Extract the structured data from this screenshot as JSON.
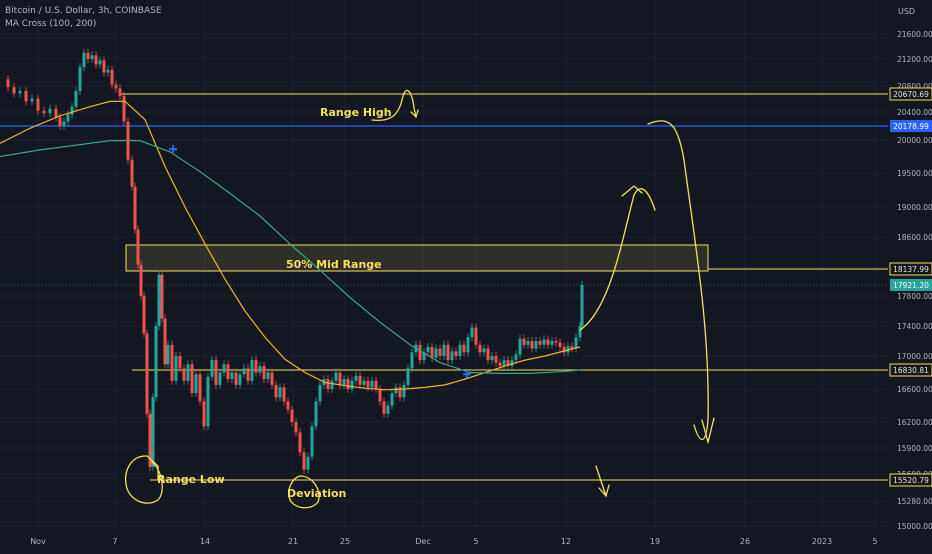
{
  "header": {
    "symbol_line": "Bitcoin / U.S. Dollar, 3h, COINBASE",
    "indicator_line": "MA Cross (100, 200)"
  },
  "axis": {
    "currency": "USD"
  },
  "colors": {
    "background": "#131722",
    "up": "#26a69a",
    "down": "#ef5350",
    "ma_fast": "#f0b429",
    "ma_slow": "#3aa683",
    "annotation": "#f5e05a",
    "range_high_line": "#2962ff",
    "grid": "#1e222d",
    "current_price_line": "#26a69a"
  },
  "annotations": {
    "range_high": "Range High",
    "mid_range": "50% Mid Range",
    "range_low": "Range Low",
    "deviation": "Deviation"
  },
  "chart_data": {
    "type": "line",
    "x_tick_labels": [
      "Nov",
      "7",
      "14",
      "21",
      "25",
      "Dec",
      "5",
      "12",
      "19",
      "26",
      "2023",
      "5"
    ],
    "y_ticks": [
      21600,
      21200,
      20800,
      20400,
      20000,
      19500,
      19000,
      18600,
      17800,
      17400,
      17000,
      16600,
      16200,
      15900,
      15600,
      15280,
      15000
    ],
    "ylim": [
      15000,
      21800
    ],
    "price_labels": [
      {
        "value": 20670.69,
        "label": "20670.69",
        "kind": "level"
      },
      {
        "value": 20178.99,
        "label": "20178.99",
        "kind": "blue"
      },
      {
        "value": 18137.99,
        "label": "18137.99",
        "kind": "level"
      },
      {
        "value": 17921.2,
        "label": "17921.20",
        "kind": "current"
      },
      {
        "value": 16830.81,
        "label": "16830.81",
        "kind": "level"
      },
      {
        "value": 15520.79,
        "label": "15520.79",
        "kind": "level"
      }
    ],
    "price_path": [
      [
        0,
        20900
      ],
      [
        8,
        20780
      ],
      [
        14,
        20680
      ],
      [
        20,
        20720
      ],
      [
        26,
        20560
      ],
      [
        32,
        20600
      ],
      [
        38,
        20420
      ],
      [
        44,
        20380
      ],
      [
        50,
        20450
      ],
      [
        56,
        20320
      ],
      [
        60,
        20180
      ],
      [
        64,
        20250
      ],
      [
        68,
        20360
      ],
      [
        72,
        20480
      ],
      [
        76,
        20720
      ],
      [
        80,
        21080
      ],
      [
        84,
        21300
      ],
      [
        88,
        21200
      ],
      [
        92,
        21260
      ],
      [
        96,
        21120
      ],
      [
        100,
        21180
      ],
      [
        104,
        21000
      ],
      [
        108,
        21040
      ],
      [
        112,
        20820
      ],
      [
        116,
        20760
      ],
      [
        120,
        20640
      ],
      [
        124,
        20250
      ],
      [
        128,
        19700
      ],
      [
        132,
        19300
      ],
      [
        135,
        18700
      ],
      [
        138,
        18200
      ],
      [
        141,
        17800
      ],
      [
        144,
        17300
      ],
      [
        147,
        16300
      ],
      [
        150,
        15680
      ],
      [
        153,
        16500
      ],
      [
        156,
        17400
      ],
      [
        159,
        18060
      ],
      [
        162,
        17500
      ],
      [
        165,
        16900
      ],
      [
        168,
        17150
      ],
      [
        172,
        16700
      ],
      [
        176,
        17000
      ],
      [
        180,
        16850
      ],
      [
        184,
        16700
      ],
      [
        188,
        16900
      ],
      [
        192,
        16550
      ],
      [
        196,
        16780
      ],
      [
        200,
        16450
      ],
      [
        204,
        16150
      ],
      [
        208,
        16750
      ],
      [
        212,
        16950
      ],
      [
        216,
        16650
      ],
      [
        220,
        16800
      ],
      [
        224,
        16900
      ],
      [
        228,
        16720
      ],
      [
        232,
        16800
      ],
      [
        236,
        16650
      ],
      [
        240,
        16780
      ],
      [
        244,
        16850
      ],
      [
        248,
        16700
      ],
      [
        252,
        16950
      ],
      [
        256,
        16800
      ],
      [
        260,
        16880
      ],
      [
        264,
        16720
      ],
      [
        268,
        16800
      ],
      [
        272,
        16650
      ],
      [
        276,
        16500
      ],
      [
        280,
        16620
      ],
      [
        284,
        16450
      ],
      [
        288,
        16350
      ],
      [
        292,
        16200
      ],
      [
        296,
        16080
      ],
      [
        300,
        15850
      ],
      [
        304,
        15650
      ],
      [
        308,
        15800
      ],
      [
        312,
        16150
      ],
      [
        316,
        16450
      ],
      [
        320,
        16650
      ],
      [
        324,
        16720
      ],
      [
        328,
        16600
      ],
      [
        332,
        16700
      ],
      [
        336,
        16800
      ],
      [
        340,
        16650
      ],
      [
        344,
        16720
      ],
      [
        348,
        16600
      ],
      [
        352,
        16700
      ],
      [
        356,
        16760
      ],
      [
        360,
        16650
      ],
      [
        364,
        16700
      ],
      [
        368,
        16620
      ],
      [
        372,
        16700
      ],
      [
        376,
        16600
      ],
      [
        380,
        16450
      ],
      [
        384,
        16300
      ],
      [
        388,
        16400
      ],
      [
        392,
        16550
      ],
      [
        396,
        16620
      ],
      [
        400,
        16500
      ],
      [
        404,
        16650
      ],
      [
        408,
        16850
      ],
      [
        412,
        17050
      ],
      [
        416,
        17150
      ],
      [
        420,
        16950
      ],
      [
        424,
        17050
      ],
      [
        428,
        17120
      ],
      [
        432,
        16980
      ],
      [
        436,
        17100
      ],
      [
        440,
        17000
      ],
      [
        444,
        17150
      ],
      [
        448,
        16950
      ],
      [
        452,
        17060
      ],
      [
        456,
        17000
      ],
      [
        460,
        17150
      ],
      [
        464,
        17050
      ],
      [
        468,
        17250
      ],
      [
        472,
        17380
      ],
      [
        476,
        17150
      ],
      [
        480,
        17050
      ],
      [
        484,
        17100
      ],
      [
        488,
        16950
      ],
      [
        492,
        17000
      ],
      [
        496,
        16920
      ],
      [
        500,
        16880
      ],
      [
        504,
        16950
      ],
      [
        508,
        16880
      ],
      [
        512,
        16950
      ],
      [
        516,
        17020
      ],
      [
        520,
        17230
      ],
      [
        524,
        17150
      ],
      [
        528,
        17200
      ],
      [
        532,
        17100
      ],
      [
        536,
        17200
      ],
      [
        540,
        17150
      ],
      [
        544,
        17220
      ],
      [
        548,
        17150
      ],
      [
        552,
        17200
      ],
      [
        556,
        17180
      ],
      [
        560,
        17120
      ],
      [
        564,
        17050
      ],
      [
        568,
        17130
      ],
      [
        572,
        17100
      ],
      [
        576,
        17250
      ],
      [
        580,
        17400
      ],
      [
        582,
        17921
      ]
    ],
    "series": [
      {
        "name": "MA 100",
        "color": "#f0b429",
        "points": [
          [
            0,
            19950
          ],
          [
            30,
            20150
          ],
          [
            60,
            20340
          ],
          [
            90,
            20480
          ],
          [
            110,
            20560
          ],
          [
            125,
            20560
          ],
          [
            145,
            20280
          ],
          [
            165,
            19600
          ],
          [
            185,
            19000
          ],
          [
            205,
            18500
          ],
          [
            225,
            18000
          ],
          [
            245,
            17600
          ],
          [
            265,
            17250
          ],
          [
            285,
            16960
          ],
          [
            305,
            16800
          ],
          [
            325,
            16680
          ],
          [
            345,
            16640
          ],
          [
            365,
            16610
          ],
          [
            385,
            16590
          ],
          [
            405,
            16600
          ],
          [
            425,
            16620
          ],
          [
            445,
            16650
          ],
          [
            465,
            16720
          ],
          [
            485,
            16800
          ],
          [
            505,
            16880
          ],
          [
            525,
            16950
          ],
          [
            545,
            17000
          ],
          [
            565,
            17070
          ],
          [
            580,
            17120
          ]
        ]
      },
      {
        "name": "MA 200",
        "color": "#3aa683",
        "points": [
          [
            0,
            19750
          ],
          [
            40,
            19850
          ],
          [
            80,
            19930
          ],
          [
            110,
            19990
          ],
          [
            140,
            19990
          ],
          [
            170,
            19820
          ],
          [
            200,
            19520
          ],
          [
            230,
            19200
          ],
          [
            260,
            18880
          ],
          [
            290,
            18500
          ],
          [
            320,
            18120
          ],
          [
            350,
            17780
          ],
          [
            380,
            17450
          ],
          [
            410,
            17150
          ],
          [
            440,
            16920
          ],
          [
            470,
            16800
          ],
          [
            500,
            16790
          ],
          [
            530,
            16790
          ],
          [
            560,
            16810
          ],
          [
            580,
            16830
          ]
        ]
      }
    ],
    "ma_cross_points": [
      [
        173,
        19860
      ],
      [
        467,
        16780
      ]
    ]
  }
}
